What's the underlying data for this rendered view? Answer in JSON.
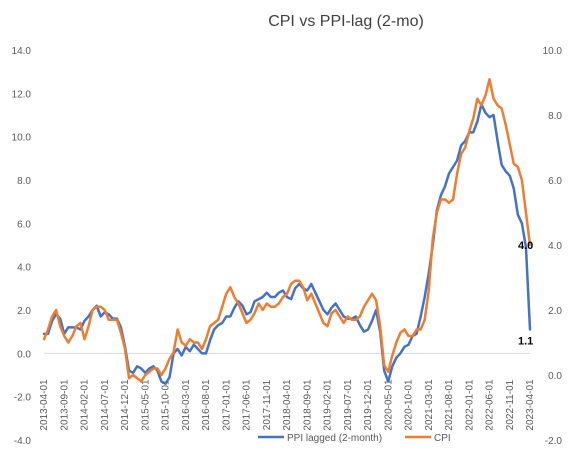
{
  "chart_data": {
    "type": "line",
    "title": "CPI vs PPI-lag  (2-mo)",
    "x_tick_labels": [
      "2013-04-01",
      "2013-09-01",
      "2014-02-01",
      "2014-07-01",
      "2014-12-01",
      "2015-05-01",
      "2015-10-01",
      "2016-03-01",
      "2016-08-01",
      "2017-01-01",
      "2017-06-01",
      "2017-11-01",
      "2018-04-01",
      "2018-09-01",
      "2019-02-01",
      "2019-07-01",
      "2019-12-01",
      "2020-05-01",
      "2020-10-01",
      "2021-03-01",
      "2021-08-01",
      "2022-01-01",
      "2022-06-01",
      "2022-11-01",
      "2023-04-01"
    ],
    "y_left": {
      "range": [
        -4,
        14
      ],
      "ticks": [
        "-4.0",
        "-2.0",
        "0.0",
        "2.0",
        "4.0",
        "6.0",
        "8.0",
        "10.0",
        "12.0",
        "14.0"
      ]
    },
    "y_right": {
      "range": [
        -2,
        10
      ],
      "ticks": [
        "-2.0",
        "0.0",
        "2.0",
        "4.0",
        "6.0",
        "8.0",
        "10.0"
      ]
    },
    "legend_position": "bottom",
    "series": [
      {
        "name": "PPI lagged (2-month)",
        "axis": "left",
        "color": "#4472C4",
        "x": [
          "2013-04-01",
          "2013-05-01",
          "2013-06-01",
          "2013-07-01",
          "2013-08-01",
          "2013-09-01",
          "2013-10-01",
          "2013-11-01",
          "2013-12-01",
          "2014-01-01",
          "2014-02-01",
          "2014-03-01",
          "2014-04-01",
          "2014-05-01",
          "2014-06-01",
          "2014-07-01",
          "2014-08-01",
          "2014-09-01",
          "2014-10-01",
          "2014-11-01",
          "2014-12-01",
          "2015-01-01",
          "2015-02-01",
          "2015-03-01",
          "2015-04-01",
          "2015-05-01",
          "2015-06-01",
          "2015-07-01",
          "2015-08-01",
          "2015-09-01",
          "2015-10-01",
          "2015-11-01",
          "2015-12-01",
          "2016-01-01",
          "2016-02-01",
          "2016-03-01",
          "2016-04-01",
          "2016-05-01",
          "2016-06-01",
          "2016-07-01",
          "2016-08-01",
          "2016-09-01",
          "2016-10-01",
          "2016-11-01",
          "2016-12-01",
          "2017-01-01",
          "2017-02-01",
          "2017-03-01",
          "2017-04-01",
          "2017-05-01",
          "2017-06-01",
          "2017-07-01",
          "2017-08-01",
          "2017-09-01",
          "2017-10-01",
          "2017-11-01",
          "2017-12-01",
          "2018-01-01",
          "2018-02-01",
          "2018-03-01",
          "2018-04-01",
          "2018-05-01",
          "2018-06-01",
          "2018-07-01",
          "2018-08-01",
          "2018-09-01",
          "2018-10-01",
          "2018-11-01",
          "2018-12-01",
          "2019-01-01",
          "2019-02-01",
          "2019-03-01",
          "2019-04-01",
          "2019-05-01",
          "2019-06-01",
          "2019-07-01",
          "2019-08-01",
          "2019-09-01",
          "2019-10-01",
          "2019-11-01",
          "2019-12-01",
          "2020-01-01",
          "2020-02-01",
          "2020-03-01",
          "2020-04-01",
          "2020-05-01",
          "2020-06-01",
          "2020-07-01",
          "2020-08-01",
          "2020-09-01",
          "2020-10-01",
          "2020-11-01",
          "2020-12-01",
          "2021-01-01",
          "2021-02-01",
          "2021-03-01",
          "2021-04-01",
          "2021-05-01",
          "2021-06-01",
          "2021-07-01",
          "2021-08-01",
          "2021-09-01",
          "2021-10-01",
          "2021-11-01",
          "2021-12-01",
          "2022-01-01",
          "2022-02-01",
          "2022-03-01",
          "2022-04-01",
          "2022-05-01",
          "2022-06-01",
          "2022-07-01",
          "2022-08-01",
          "2022-09-01",
          "2022-10-01",
          "2022-11-01",
          "2022-12-01",
          "2023-01-01",
          "2023-02-01",
          "2023-03-01",
          "2023-04-01"
        ],
        "values": [
          0.9,
          0.9,
          1.5,
          1.8,
          1.6,
          0.9,
          1.2,
          1.2,
          1.2,
          1.1,
          1.5,
          1.7,
          2.0,
          2.2,
          1.7,
          1.9,
          1.8,
          1.6,
          1.6,
          1.2,
          0.3,
          -0.8,
          -0.9,
          -0.6,
          -0.7,
          -0.9,
          -0.7,
          -0.6,
          -0.8,
          -1.3,
          -1.4,
          -1.1,
          0.0,
          0.2,
          -0.1,
          0.3,
          0.1,
          0.4,
          0.2,
          0.0,
          0.0,
          0.6,
          1.1,
          1.3,
          1.4,
          1.7,
          1.7,
          2.1,
          2.4,
          2.2,
          1.8,
          1.9,
          2.4,
          2.5,
          2.6,
          2.8,
          2.6,
          2.6,
          2.8,
          2.9,
          2.6,
          2.5,
          3.0,
          3.2,
          3.0,
          2.9,
          3.2,
          2.8,
          2.4,
          2.0,
          1.8,
          2.1,
          2.3,
          2.0,
          1.7,
          1.6,
          1.6,
          1.7,
          1.3,
          1.0,
          1.1,
          1.5,
          2.0,
          1.0,
          -0.8,
          -1.3,
          -0.6,
          -0.2,
          0.0,
          0.3,
          0.4,
          0.8,
          0.9,
          1.7,
          2.6,
          3.7,
          5.0,
          6.6,
          7.3,
          7.7,
          8.3,
          8.6,
          8.9,
          9.6,
          9.8,
          10.2,
          10.2,
          10.7,
          11.5,
          11.1,
          10.9,
          11.0,
          9.8,
          8.7,
          8.4,
          8.2,
          7.6,
          6.4,
          6.0,
          4.9,
          1.1
        ]
      },
      {
        "name": "CPI",
        "axis": "right",
        "color": "#ED7D31",
        "x": [
          "2013-04-01",
          "2013-05-01",
          "2013-06-01",
          "2013-07-01",
          "2013-08-01",
          "2013-09-01",
          "2013-10-01",
          "2013-11-01",
          "2013-12-01",
          "2014-01-01",
          "2014-02-01",
          "2014-03-01",
          "2014-04-01",
          "2014-05-01",
          "2014-06-01",
          "2014-07-01",
          "2014-08-01",
          "2014-09-01",
          "2014-10-01",
          "2014-11-01",
          "2014-12-01",
          "2015-01-01",
          "2015-02-01",
          "2015-03-01",
          "2015-04-01",
          "2015-05-01",
          "2015-06-01",
          "2015-07-01",
          "2015-08-01",
          "2015-09-01",
          "2015-10-01",
          "2015-11-01",
          "2015-12-01",
          "2016-01-01",
          "2016-02-01",
          "2016-03-01",
          "2016-04-01",
          "2016-05-01",
          "2016-06-01",
          "2016-07-01",
          "2016-08-01",
          "2016-09-01",
          "2016-10-01",
          "2016-11-01",
          "2016-12-01",
          "2017-01-01",
          "2017-02-01",
          "2017-03-01",
          "2017-04-01",
          "2017-05-01",
          "2017-06-01",
          "2017-07-01",
          "2017-08-01",
          "2017-09-01",
          "2017-10-01",
          "2017-11-01",
          "2017-12-01",
          "2018-01-01",
          "2018-02-01",
          "2018-03-01",
          "2018-04-01",
          "2018-05-01",
          "2018-06-01",
          "2018-07-01",
          "2018-08-01",
          "2018-09-01",
          "2018-10-01",
          "2018-11-01",
          "2018-12-01",
          "2019-01-01",
          "2019-02-01",
          "2019-03-01",
          "2019-04-01",
          "2019-05-01",
          "2019-06-01",
          "2019-07-01",
          "2019-08-01",
          "2019-09-01",
          "2019-10-01",
          "2019-11-01",
          "2019-12-01",
          "2020-01-01",
          "2020-02-01",
          "2020-03-01",
          "2020-04-01",
          "2020-05-01",
          "2020-06-01",
          "2020-07-01",
          "2020-08-01",
          "2020-09-01",
          "2020-10-01",
          "2020-11-01",
          "2020-12-01",
          "2021-01-01",
          "2021-02-01",
          "2021-03-01",
          "2021-04-01",
          "2021-05-01",
          "2021-06-01",
          "2021-07-01",
          "2021-08-01",
          "2021-09-01",
          "2021-10-01",
          "2021-11-01",
          "2021-12-01",
          "2022-01-01",
          "2022-02-01",
          "2022-03-01",
          "2022-04-01",
          "2022-05-01",
          "2022-06-01",
          "2022-07-01",
          "2022-08-01",
          "2022-09-01",
          "2022-10-01",
          "2022-11-01",
          "2022-12-01",
          "2023-01-01",
          "2023-02-01",
          "2023-03-01",
          "2023-04-01"
        ],
        "values": [
          1.1,
          1.4,
          1.8,
          2.0,
          1.5,
          1.2,
          1.0,
          1.2,
          1.5,
          1.6,
          1.1,
          1.5,
          2.0,
          2.1,
          2.1,
          2.0,
          1.7,
          1.7,
          1.7,
          1.3,
          0.8,
          -0.1,
          0.0,
          -0.1,
          -0.2,
          0.0,
          0.1,
          0.2,
          0.2,
          0.0,
          0.2,
          0.5,
          0.7,
          1.4,
          1.0,
          0.9,
          1.1,
          1.0,
          1.0,
          0.8,
          1.1,
          1.5,
          1.6,
          1.7,
          2.1,
          2.5,
          2.7,
          2.4,
          2.2,
          1.9,
          1.6,
          1.7,
          1.9,
          2.2,
          2.0,
          2.2,
          2.1,
          2.1,
          2.2,
          2.4,
          2.5,
          2.8,
          2.9,
          2.9,
          2.7,
          2.3,
          2.5,
          2.2,
          1.9,
          1.6,
          1.5,
          1.9,
          2.0,
          1.8,
          1.6,
          1.8,
          1.7,
          1.7,
          1.8,
          2.1,
          2.3,
          2.5,
          2.3,
          1.5,
          0.3,
          0.1,
          0.6,
          1.0,
          1.3,
          1.4,
          1.2,
          1.2,
          1.4,
          1.4,
          1.7,
          2.6,
          4.2,
          5.0,
          5.4,
          5.4,
          5.3,
          5.4,
          6.2,
          6.8,
          7.0,
          7.5,
          7.9,
          8.5,
          8.3,
          8.6,
          9.1,
          8.5,
          8.3,
          8.2,
          7.7,
          7.1,
          6.5,
          6.4,
          6.0,
          5.0,
          4.0
        ]
      }
    ],
    "annotations": [
      {
        "text": "4.0",
        "series": "CPI",
        "axis": "right",
        "x": "2023-04-01",
        "y": 4.0
      },
      {
        "text": "1.1",
        "series": "PPI lagged (2-month)",
        "axis": "left",
        "x": "2023-04-01",
        "y": 1.1
      }
    ]
  }
}
